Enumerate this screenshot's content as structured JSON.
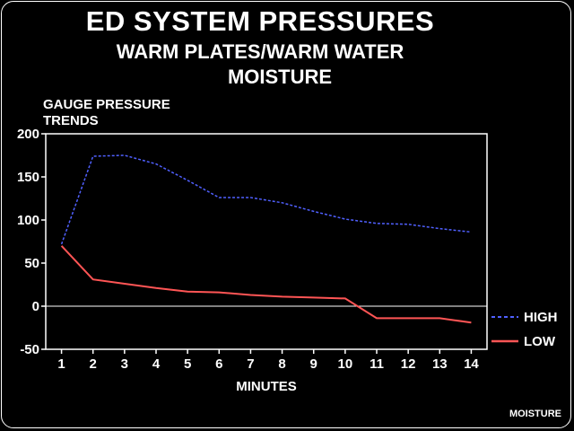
{
  "header": {
    "title": "ED SYSTEM PRESSURES",
    "subtitle_line1": "WARM PLATES/WARM WATER",
    "subtitle_line2": "MOISTURE"
  },
  "footer_label": "MOISTURE",
  "chart_data": {
    "type": "line",
    "ylabel_line1": "GAUGE PRESSURE",
    "ylabel_line2": "TRENDS",
    "xlabel": "MINUTES",
    "x": [
      1,
      2,
      3,
      4,
      5,
      6,
      7,
      8,
      9,
      10,
      11,
      12,
      13,
      14
    ],
    "ylim": [
      -50,
      200
    ],
    "yticks": [
      -50,
      0,
      50,
      100,
      150,
      200
    ],
    "xlim": [
      0.5,
      14.5
    ],
    "series": [
      {
        "name": "HIGH",
        "color": "#5060ff",
        "style": "dashed",
        "points": [
          [
            1,
            72
          ],
          [
            2,
            174
          ],
          [
            3,
            175
          ],
          [
            4,
            165
          ],
          [
            5,
            146
          ],
          [
            6,
            126
          ],
          [
            7,
            126
          ],
          [
            8,
            120
          ],
          [
            9,
            110
          ],
          [
            10,
            101
          ],
          [
            11,
            96
          ],
          [
            12,
            95
          ],
          [
            13,
            90
          ],
          [
            14,
            86
          ]
        ]
      },
      {
        "name": "LOW",
        "color": "#ff5555",
        "style": "solid",
        "points": [
          [
            1,
            70
          ],
          [
            2,
            31
          ],
          [
            3,
            26
          ],
          [
            4,
            21
          ],
          [
            5,
            17
          ],
          [
            6,
            16
          ],
          [
            7,
            13
          ],
          [
            8,
            11
          ],
          [
            9,
            10
          ],
          [
            10,
            9
          ],
          [
            11,
            -14
          ],
          [
            12,
            -14
          ],
          [
            13,
            -14
          ],
          [
            14,
            -19
          ]
        ]
      }
    ],
    "zero_line": true,
    "grid": false,
    "legend": "right"
  }
}
